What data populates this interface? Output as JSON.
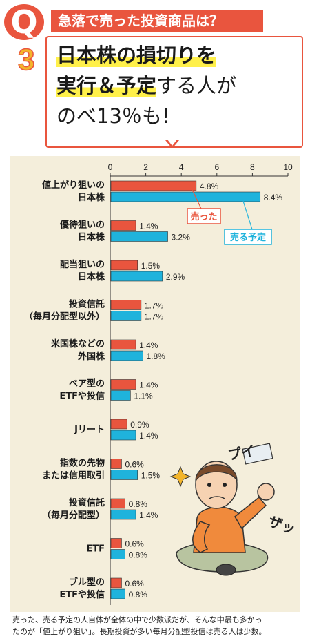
{
  "header": {
    "q_letter": "Q",
    "q_number": "3",
    "question": "急落で売った投資商品は？",
    "headline_line1": "日本株の損切りを",
    "headline_line2_bold": "実行＆予定",
    "headline_line2_rest": "する人が",
    "headline_line3": "のべ13％も!"
  },
  "chart_data": {
    "type": "bar",
    "orientation": "horizontal",
    "x_ticks": [
      "0",
      "2",
      "4",
      "6",
      "8",
      "10"
    ],
    "xlim": [
      0,
      10
    ],
    "categories": [
      [
        "値上がり狙いの",
        "日本株"
      ],
      [
        "優待狙いの",
        "日本株"
      ],
      [
        "配当狙いの",
        "日本株"
      ],
      [
        "投資信託",
        "（毎月分配型以外）"
      ],
      [
        "米国株などの",
        "外国株"
      ],
      [
        "ベア型の",
        "ETFや投信"
      ],
      [
        "Jリート"
      ],
      [
        "指数の先物",
        "または信用取引"
      ],
      [
        "投資信託",
        "（毎月分配型）"
      ],
      [
        "ETF"
      ],
      [
        "ブル型の",
        "ETFや投信"
      ]
    ],
    "series": [
      {
        "name": "売った",
        "color": "#e9553e",
        "values": [
          4.8,
          1.4,
          1.5,
          1.7,
          1.4,
          1.4,
          0.9,
          0.6,
          0.8,
          0.6,
          0.6
        ],
        "labels": [
          "4.8%",
          "1.4%",
          "1.5%",
          "1.7%",
          "1.4%",
          "1.4%",
          "0.9%",
          "0.6%",
          "0.8%",
          "0.6%",
          "0.6%"
        ]
      },
      {
        "name": "売る予定",
        "color": "#1fb3dc",
        "values": [
          8.4,
          3.2,
          2.9,
          1.7,
          1.8,
          1.1,
          1.4,
          1.5,
          1.4,
          0.8,
          0.8
        ],
        "labels": [
          "8.4%",
          "3.2%",
          "2.9%",
          "1.7%",
          "1.8%",
          "1.1%",
          "1.4%",
          "1.5%",
          "1.4%",
          "0.8%",
          "0.8%"
        ]
      }
    ],
    "callouts": [
      "売った",
      "売る予定"
    ]
  },
  "illustration": {
    "sfx_1": "プイ",
    "sfx_2": "ザッ"
  },
  "note": {
    "line1": "売った、売る予定の人自体が全体の中で少数派だが、そんな中最も多かっ",
    "line2": "たのが「値上がり狙い」。長期投資が多い毎月分配型投信は売る人は少数。"
  }
}
